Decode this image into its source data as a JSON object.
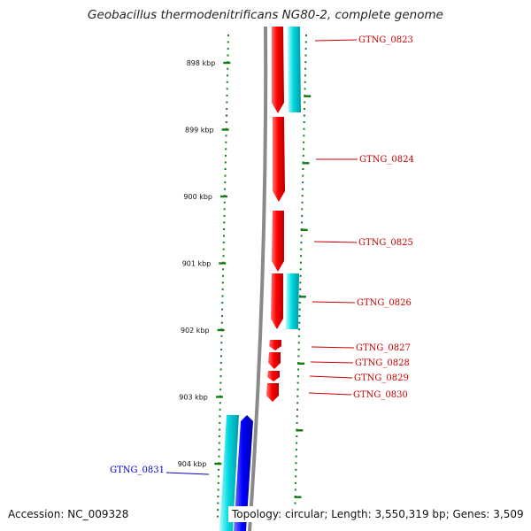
{
  "title": "Geobacillus thermodenitrificans NG80-2, complete genome",
  "footer": {
    "accession": "Accession: NC_009328",
    "topology": "Topology: circular; Length: 3,550,319 bp; Genes: 3,509"
  },
  "colors": {
    "backbone": "#8a8a8a",
    "tick": "#157a15",
    "forward_gene": "#ff0000",
    "forward_label": "#cc0000",
    "reverse_gene": "#0000ff",
    "reverse_label": "#0000cc",
    "cds_band": "#00d0d8"
  },
  "ticks": [
    {
      "label": "898 kbp"
    },
    {
      "label": "899 kbp"
    },
    {
      "label": "900 kbp"
    },
    {
      "label": "901 kbp"
    },
    {
      "label": "902 kbp"
    },
    {
      "label": "903 kbp"
    },
    {
      "label": "904 kbp"
    }
  ],
  "genes": [
    {
      "name": "GTNG_0823",
      "strand": "+"
    },
    {
      "name": "GTNG_0824",
      "strand": "+"
    },
    {
      "name": "GTNG_0825",
      "strand": "+"
    },
    {
      "name": "GTNG_0826",
      "strand": "+"
    },
    {
      "name": "GTNG_0827",
      "strand": "+"
    },
    {
      "name": "GTNG_0828",
      "strand": "+"
    },
    {
      "name": "GTNG_0829",
      "strand": "+"
    },
    {
      "name": "GTNG_0830",
      "strand": "+"
    },
    {
      "name": "GTNG_0831",
      "strand": "-"
    }
  ]
}
